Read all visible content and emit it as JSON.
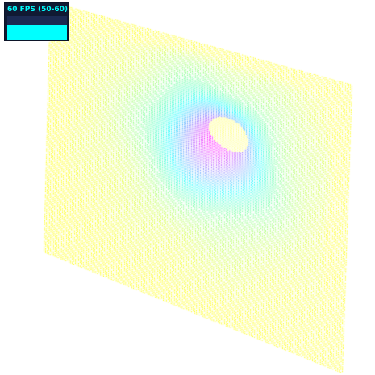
{
  "stats_panel": {
    "fps_text": "60 FPS (50-60)",
    "fps_graph_level": 0.62,
    "text_color": "#00ffff",
    "graph_color": "#00ffff",
    "panel_color": "#101a33"
  },
  "scene": {
    "background": "#ffffff",
    "colormap": [
      "#ffff00",
      "#00ffff",
      "#ff00ff"
    ]
  }
}
